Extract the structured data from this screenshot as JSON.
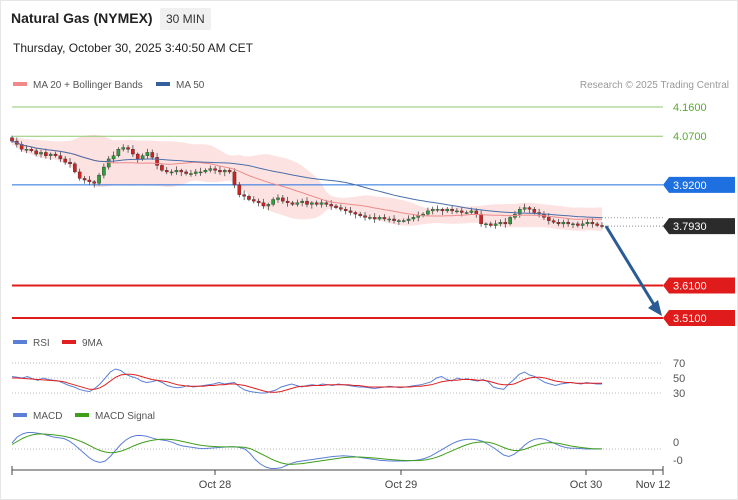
{
  "header": {
    "title": "Natural Gas (NYMEX)",
    "timeframe": "30 MIN",
    "datetime": "Thursday, October 30, 2025 3:40:50 AM CET"
  },
  "legends": {
    "main": [
      {
        "label": "MA 20 + Bollinger Bands",
        "color": "#f08a8a"
      },
      {
        "label": "MA 50",
        "color": "#35609c"
      }
    ],
    "rsi": [
      {
        "label": "RSI",
        "color": "#5b7fd6"
      },
      {
        "label": "9MA",
        "color": "#e02020"
      }
    ],
    "macd": [
      {
        "label": "MACD",
        "color": "#5b7fd6"
      },
      {
        "label": "MACD Signal",
        "color": "#3f9e1a"
      }
    ]
  },
  "credit": "Research © 2025 Trading Central",
  "colors": {
    "candle_up": "#2e9d3a",
    "candle_down": "#d02020",
    "bb_fill": "#fde2e2",
    "ma20": "#ec8c8c",
    "ma50": "#4a6fa8",
    "arrow": "#2b5b95"
  },
  "chart_data": [
    {
      "type": "candlestick",
      "title": "Natural Gas (NYMEX)",
      "timeframe": "30 MIN",
      "x_ticks": [
        "Oct 28",
        "Oct 29",
        "Oct 30",
        "Nov 12"
      ],
      "ylim": [
        3.48,
        4.18
      ],
      "levels": [
        {
          "label": "4.1600",
          "value": 4.16,
          "color": "#8fc971",
          "style": "thin"
        },
        {
          "label": "4.0700",
          "value": 4.07,
          "color": "#8fc971",
          "style": "thin"
        },
        {
          "label": "3.9200",
          "value": 3.92,
          "color": "#1e6fe0",
          "style": "badge"
        },
        {
          "label": "3.7930",
          "value": 3.793,
          "color": "#2b2b2b",
          "style": "price"
        },
        {
          "label": "3.6100",
          "value": 3.61,
          "color": "#e01b1b",
          "style": "badge"
        },
        {
          "label": "3.5100",
          "value": 3.51,
          "color": "#e01b1b",
          "style": "badge"
        }
      ],
      "close_series": [
        4.055,
        4.045,
        4.03,
        4.03,
        4.025,
        4.015,
        4.02,
        4.01,
        4.015,
        4.01,
        4.0,
        3.99,
        3.985,
        3.96,
        3.94,
        3.935,
        3.93,
        3.925,
        3.95,
        3.975,
        4.0,
        4.01,
        4.03,
        4.035,
        4.03,
        4.015,
        4.0,
        4.01,
        4.02,
        4.005,
        3.98,
        3.965,
        3.96,
        3.96,
        3.965,
        3.96,
        3.955,
        3.955,
        3.96,
        3.96,
        3.965,
        3.97,
        3.965,
        3.96,
        3.965,
        3.96,
        3.92,
        3.89,
        3.885,
        3.875,
        3.87,
        3.865,
        3.855,
        3.86,
        3.875,
        3.88,
        3.87,
        3.865,
        3.86,
        3.865,
        3.87,
        3.86,
        3.865,
        3.86,
        3.865,
        3.86,
        3.855,
        3.85,
        3.845,
        3.84,
        3.835,
        3.83,
        3.825,
        3.82,
        3.82,
        3.815,
        3.82,
        3.815,
        3.815,
        3.81,
        3.81,
        3.81,
        3.815,
        3.82,
        3.825,
        3.83,
        3.84,
        3.845,
        3.845,
        3.84,
        3.845,
        3.84,
        3.84,
        3.835,
        3.835,
        3.84,
        3.83,
        3.8,
        3.8,
        3.795,
        3.8,
        3.805,
        3.8,
        3.82,
        3.83,
        3.845,
        3.85,
        3.845,
        3.835,
        3.83,
        3.82,
        3.81,
        3.805,
        3.8,
        3.805,
        3.8,
        3.8,
        3.795,
        3.8,
        3.805,
        3.8,
        3.795,
        3.793
      ],
      "forecast_arrow": {
        "from_value": 3.793,
        "to_value": 3.51
      },
      "annotations": []
    },
    {
      "type": "line",
      "title": "RSI",
      "ylim": [
        20,
        80
      ],
      "y_ticks": [
        70,
        50,
        30
      ],
      "series": [
        {
          "name": "RSI",
          "values": [
            52,
            51,
            50,
            52,
            49,
            47,
            50,
            48,
            47,
            46,
            43,
            40,
            38,
            35,
            33,
            32,
            36,
            42,
            50,
            58,
            62,
            60,
            55,
            52,
            50,
            46,
            44,
            45,
            47,
            44,
            40,
            38,
            37,
            38,
            40,
            38,
            39,
            40,
            41,
            42,
            44,
            42,
            43,
            44,
            38,
            34,
            32,
            31,
            30,
            30,
            32,
            34,
            38,
            40,
            42,
            40,
            38,
            40,
            41,
            40,
            42,
            41,
            40,
            42,
            41,
            40,
            39,
            38,
            38,
            37,
            36,
            37,
            38,
            39,
            38,
            37,
            38,
            39,
            40,
            41,
            43,
            45,
            50,
            52,
            48,
            46,
            50,
            48,
            49,
            47,
            46,
            48,
            45,
            38,
            36,
            35,
            42,
            48,
            55,
            58,
            54,
            52,
            48,
            44,
            42,
            40,
            42,
            43,
            44,
            43,
            42,
            44,
            43,
            42,
            42
          ]
        },
        {
          "name": "9MA",
          "values": [
            50,
            50,
            49.5,
            49,
            48.5,
            48,
            47.5,
            47,
            46.5,
            46,
            45,
            43,
            41,
            39,
            37,
            35,
            35,
            37,
            41,
            46,
            51,
            54,
            55,
            55,
            54,
            52,
            50,
            48,
            47,
            46,
            45,
            43,
            41,
            40,
            39,
            39,
            39,
            39,
            40,
            40,
            41,
            41,
            42,
            42,
            41,
            40,
            38,
            36,
            34,
            32,
            31,
            31,
            32,
            34,
            36,
            38,
            39,
            39,
            40,
            40,
            40,
            41,
            41,
            41,
            41,
            41,
            40,
            40,
            39,
            38,
            38,
            38,
            38,
            38,
            38,
            38,
            38,
            38,
            39,
            39,
            40,
            41,
            43,
            45,
            46,
            47,
            47,
            48,
            48,
            48,
            47,
            47,
            46,
            44,
            42,
            41,
            41,
            42,
            45,
            48,
            50,
            51,
            51,
            50,
            48,
            46,
            45,
            44,
            44,
            43,
            43,
            43,
            43,
            43,
            43
          ]
        }
      ]
    },
    {
      "type": "line",
      "title": "MACD",
      "y_ticks": [
        "0",
        "-0"
      ],
      "series": [
        {
          "name": "MACD",
          "values": [
            0.8,
            1.6,
            2.0,
            2.2,
            2.2,
            2.1,
            2.0,
            1.8,
            1.6,
            1.5,
            1.4,
            1.1,
            0.6,
            0.0,
            -0.6,
            -1.2,
            -1.6,
            -1.8,
            -1.6,
            -1.0,
            -0.2,
            0.6,
            1.2,
            1.6,
            1.8,
            1.8,
            1.7,
            1.5,
            1.3,
            1.2,
            1.1,
            0.9,
            0.6,
            0.4,
            0.3,
            0.2,
            0.1,
            0.05,
            0.1,
            0.15,
            0.2,
            0.25,
            0.3,
            0.3,
            0.2,
            0.0,
            -0.6,
            -1.4,
            -2.0,
            -2.4,
            -2.6,
            -2.6,
            -2.5,
            -2.2,
            -1.9,
            -1.7,
            -1.6,
            -1.5,
            -1.4,
            -1.3,
            -1.2,
            -1.1,
            -1.0,
            -0.95,
            -0.9,
            -0.95,
            -1.0,
            -1.1,
            -1.2,
            -1.3,
            -1.4,
            -1.5,
            -1.55,
            -1.6,
            -1.6,
            -1.6,
            -1.6,
            -1.55,
            -1.5,
            -1.4,
            -1.2,
            -0.9,
            -0.5,
            -0.1,
            0.3,
            0.7,
            1.0,
            1.2,
            1.3,
            1.3,
            1.2,
            1.0,
            0.6,
            0.2,
            -0.3,
            -0.8,
            -1.0,
            -0.7,
            -0.2,
            0.5,
            1.0,
            1.3,
            1.4,
            1.3,
            1.0,
            0.7,
            0.4,
            0.2,
            0.1,
            0.1,
            0.05,
            0.0,
            0.0,
            0.0,
            0.0
          ]
        },
        {
          "name": "MACD Signal",
          "values": [
            0.6,
            1.0,
            1.4,
            1.7,
            1.9,
            2.0,
            2.0,
            1.95,
            1.9,
            1.8,
            1.7,
            1.55,
            1.35,
            1.1,
            0.8,
            0.45,
            0.1,
            -0.2,
            -0.4,
            -0.5,
            -0.45,
            -0.3,
            -0.05,
            0.25,
            0.55,
            0.8,
            1.0,
            1.15,
            1.25,
            1.3,
            1.3,
            1.25,
            1.15,
            1.0,
            0.85,
            0.7,
            0.55,
            0.45,
            0.38,
            0.33,
            0.3,
            0.28,
            0.28,
            0.28,
            0.27,
            0.22,
            0.05,
            -0.25,
            -0.6,
            -0.95,
            -1.3,
            -1.6,
            -1.85,
            -2.0,
            -2.05,
            -2.0,
            -1.95,
            -1.85,
            -1.75,
            -1.65,
            -1.55,
            -1.45,
            -1.35,
            -1.25,
            -1.15,
            -1.1,
            -1.07,
            -1.07,
            -1.1,
            -1.15,
            -1.2,
            -1.27,
            -1.33,
            -1.4,
            -1.45,
            -1.5,
            -1.53,
            -1.55,
            -1.55,
            -1.52,
            -1.45,
            -1.3,
            -1.1,
            -0.85,
            -0.55,
            -0.25,
            0.05,
            0.35,
            0.6,
            0.8,
            0.9,
            0.95,
            0.9,
            0.75,
            0.5,
            0.2,
            -0.05,
            -0.2,
            -0.2,
            -0.05,
            0.2,
            0.45,
            0.65,
            0.8,
            0.85,
            0.8,
            0.7,
            0.55,
            0.4,
            0.3,
            0.2,
            0.12,
            0.06,
            0.03,
            0.01
          ]
        }
      ]
    }
  ]
}
